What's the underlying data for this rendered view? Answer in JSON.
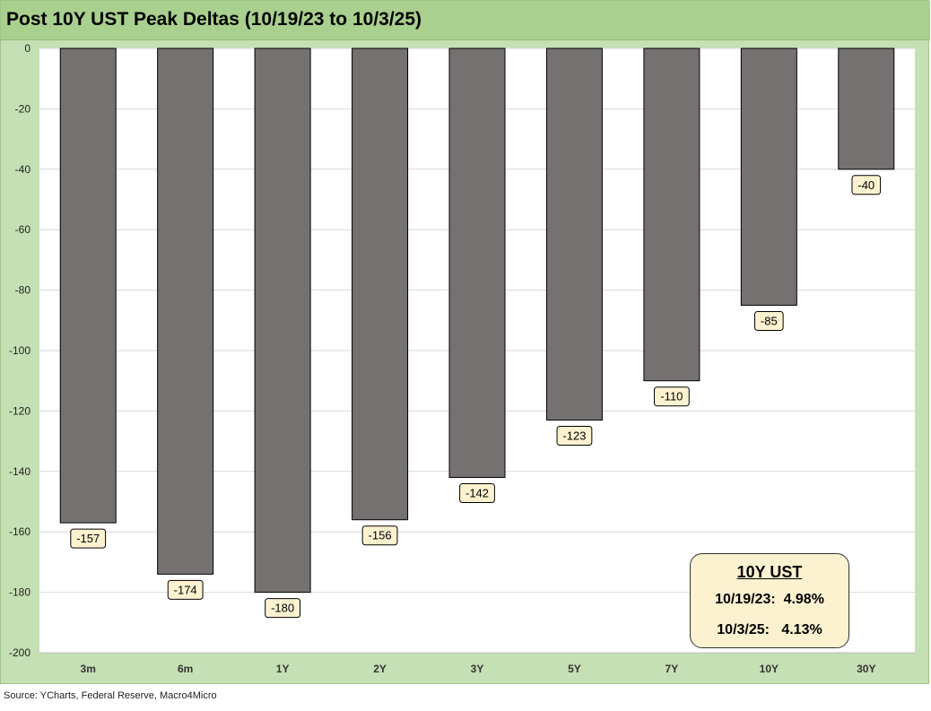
{
  "title": "Post 10Y UST Peak Deltas (10/19/23 to 10/3/25)",
  "source": "Source: YCharts, Federal Reserve, Macro4Micro",
  "colors": {
    "frame": "#c5e0b4",
    "title_bar": "#a9d08e",
    "bar": "#767171",
    "label_bg": "#fdf2d0",
    "gridline": "#d9d9d9"
  },
  "legend_box": {
    "title": "10Y UST",
    "line1": "10/19/23:  4.98%",
    "line2": "10/3/25:   4.13%"
  },
  "chart_data": {
    "type": "bar",
    "categories": [
      "3m",
      "6m",
      "1Y",
      "2Y",
      "3Y",
      "5Y",
      "7Y",
      "10Y",
      "30Y"
    ],
    "values": [
      -157,
      -174,
      -180,
      -156,
      -142,
      -123,
      -110,
      -85,
      -40
    ],
    "data_labels": [
      "-157",
      "-174",
      "-180",
      "-156",
      "-142",
      "-123",
      "-110",
      "-85",
      "-40"
    ],
    "ylim": [
      -200,
      0
    ],
    "yticks": [
      0,
      -20,
      -40,
      -60,
      -80,
      -100,
      -120,
      -140,
      -160,
      -180,
      -200
    ],
    "ytick_labels": [
      "0",
      "-20",
      "-40",
      "-60",
      "-80",
      "-100",
      "-120",
      "-140",
      "-160",
      "-180",
      "-200"
    ],
    "xlabel": "",
    "ylabel": "",
    "grid": true,
    "legend": "none"
  }
}
